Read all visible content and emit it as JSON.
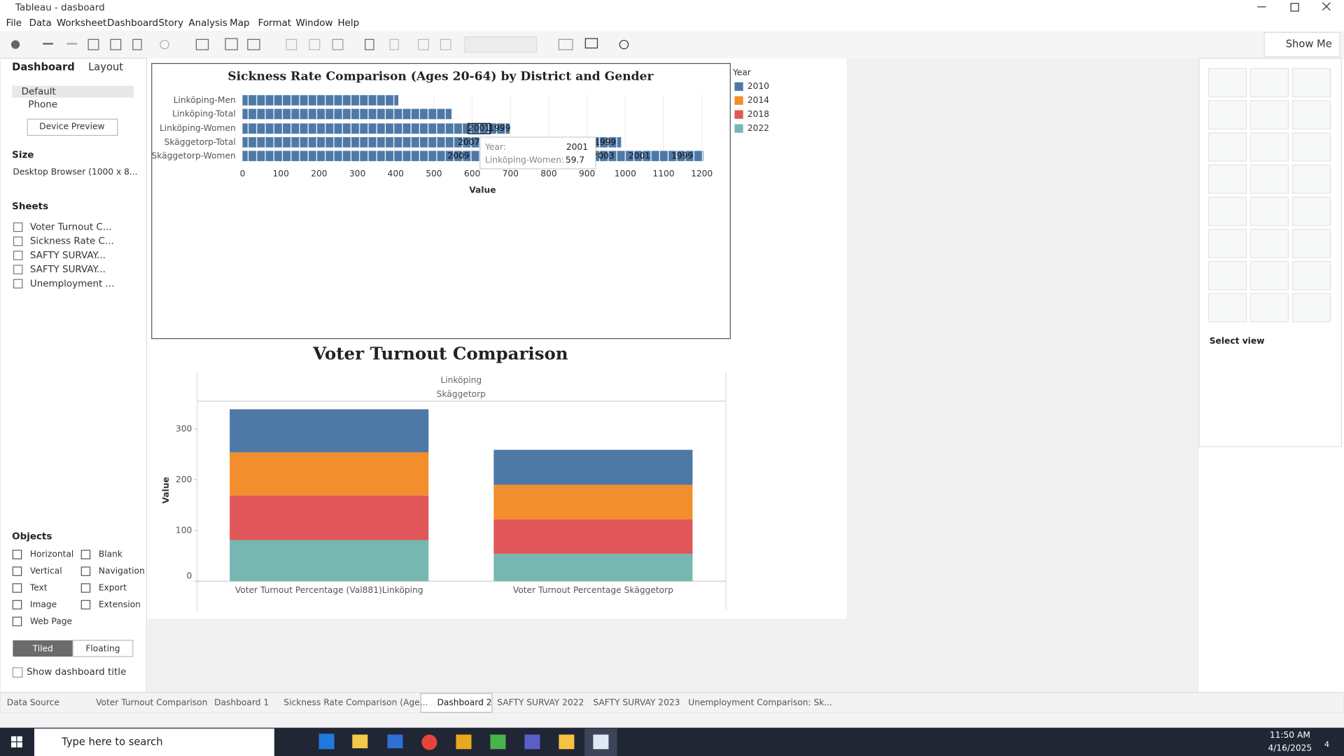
{
  "window": {
    "title": "Tableau - dasboard"
  },
  "menu": [
    "File",
    "Data",
    "Worksheet",
    "Dashboard",
    "Story",
    "Analysis",
    "Map",
    "Format",
    "Window",
    "Help"
  ],
  "toolbar": {
    "show_me": "Show Me"
  },
  "left_panel": {
    "tabs": [
      "Dashboard",
      "Layout"
    ],
    "devices": [
      "Default",
      "Phone"
    ],
    "device_preview": "Device Preview",
    "size_heading": "Size",
    "size_value": "Desktop Browser (1000 x 8...",
    "sheets_heading": "Sheets",
    "sheets": [
      "Voter Turnout C...",
      "Sickness Rate C...",
      "SAFTY SURVAY...",
      "SAFTY SURVAY...",
      "Unemployment ..."
    ],
    "objects_heading": "Objects",
    "objects": [
      "Horizontal",
      "Blank",
      "Vertical",
      "Navigation",
      "Text",
      "Export",
      "Image",
      "Extension",
      "Web Page"
    ],
    "layout_modes": [
      "Tiled",
      "Floating"
    ],
    "show_title": "Show dashboard title"
  },
  "sickness_chart": {
    "type": "bar",
    "title": "Sickness Rate Comparison (Ages 20-64) by District and Gender",
    "categories": [
      "Linköping-Men",
      "Linköping-Total",
      "Linköping-Women",
      "Skäggetorp-Total",
      "Skäggetorp-Women"
    ],
    "values": [
      407,
      546,
      698,
      989,
      1204
    ],
    "color": "#4e79a7",
    "xlim": [
      0,
      1225
    ],
    "xticks": [
      0,
      100,
      200,
      300,
      400,
      500,
      600,
      700,
      800,
      900,
      1000,
      1100,
      1200
    ],
    "x_label": "Value",
    "segment_labels": [
      [],
      [],
      [
        "2001",
        "1999"
      ],
      [
        "2007",
        "1999"
      ],
      [
        "2009",
        "2003",
        "2001",
        "1999"
      ]
    ],
    "tooltip": {
      "year_label": "Year:",
      "year": "2001",
      "category_label": "Linköping-Women:",
      "value": 59.7
    }
  },
  "voter_chart": {
    "type": "stacked_bar",
    "title": "Voter Turnout Comparison",
    "header": [
      "Linköping",
      "Skäggetorp"
    ],
    "categories": [
      "Voter Turnout Percentage (Val881)Linköping",
      "Voter Turnout Percentage Skäggetorp"
    ],
    "y_label": "Value",
    "ylim": [
      0,
      355
    ],
    "yticks": [
      0,
      100,
      200,
      300
    ],
    "legend_title": "Year",
    "series": [
      {
        "name": "2010",
        "color": "#4e79a7",
        "values": [
          85,
          69
        ]
      },
      {
        "name": "2014",
        "color": "#f28e2b",
        "values": [
          85,
          68
        ]
      },
      {
        "name": "2018",
        "color": "#e15759",
        "values": [
          88,
          68
        ]
      },
      {
        "name": "2022",
        "color": "#76b7b2",
        "values": [
          81,
          54
        ]
      }
    ]
  },
  "show_me_panel": {
    "hint": "Select view"
  },
  "sheet_tabs": [
    "Data Source",
    "Voter Turnout Comparison",
    "Dashboard 1",
    "Sickness Rate Comparison (Age...",
    "Dashboard 2",
    "SAFTY SURVAY 2022",
    "SAFTY SURVAY 2023",
    "Unemployment Comparison: Sk..."
  ],
  "taskbar": {
    "search": "Type here to search",
    "time": "11:50 AM",
    "date": "4/16/2025",
    "notifications": "4"
  }
}
